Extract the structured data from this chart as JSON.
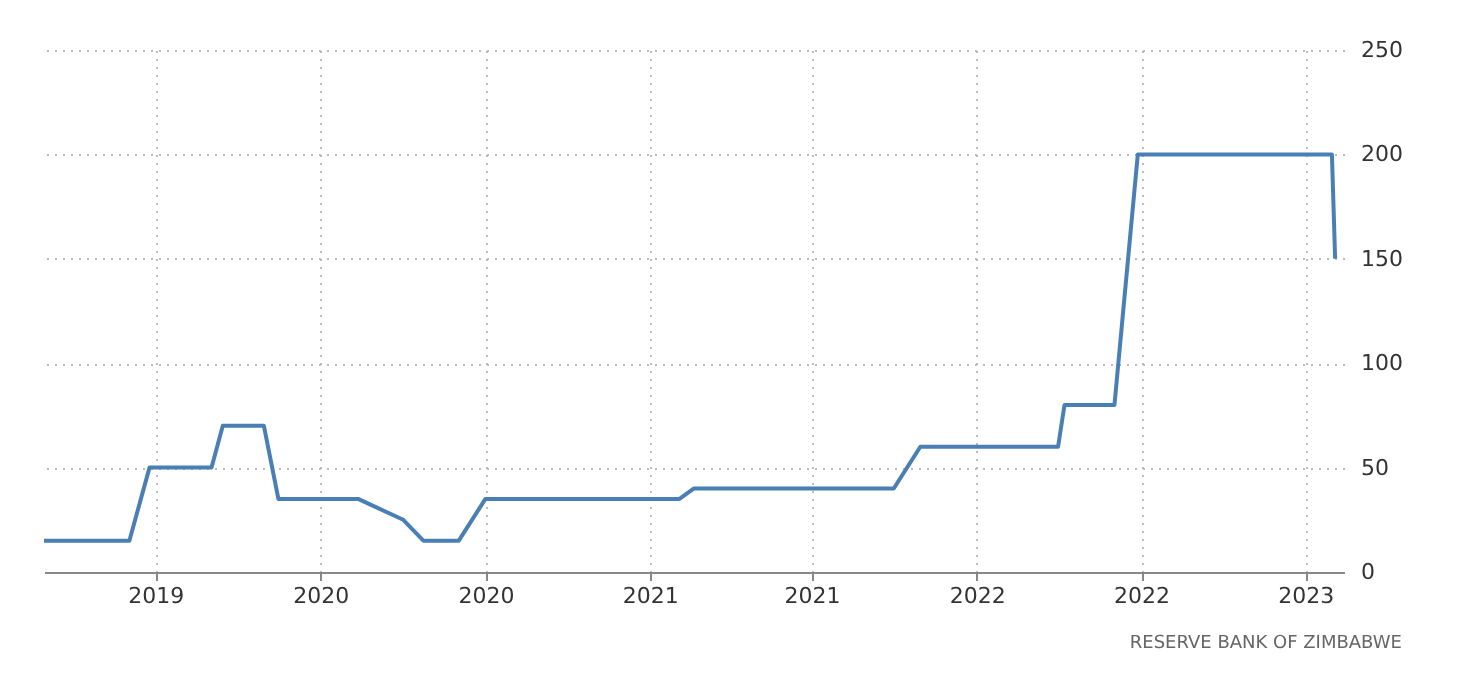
{
  "chart_data": {
    "type": "line",
    "xlim": [
      "2019-01-23",
      "2023-06-25"
    ],
    "ylim": [
      0,
      250
    ],
    "xticks": [
      {
        "value": "2019-06-10",
        "label": "2019"
      },
      {
        "value": "2020-01-01",
        "label": "2020"
      },
      {
        "value": "2020-07-24",
        "label": "2020"
      },
      {
        "value": "2021-02-13",
        "label": "2021"
      },
      {
        "value": "2021-09-02",
        "label": "2021"
      },
      {
        "value": "2022-03-26",
        "label": "2022"
      },
      {
        "value": "2022-10-16",
        "label": "2022"
      },
      {
        "value": "2023-05-08",
        "label": "2023"
      }
    ],
    "yticks": [
      0,
      50,
      100,
      150,
      200,
      250
    ],
    "grid": true,
    "line_style": "solid",
    "marker": "none",
    "x": [
      "2019-01-23",
      "2019-05-09",
      "2019-06-03",
      "2019-08-19",
      "2019-09-02",
      "2019-10-23",
      "2019-11-10",
      "2020-02-17",
      "2020-04-13",
      "2020-05-08",
      "2020-06-21",
      "2020-07-24",
      "2021-03-22",
      "2021-04-09",
      "2021-12-13",
      "2022-01-15",
      "2022-07-05",
      "2022-07-13",
      "2022-09-13",
      "2022-10-12",
      "2023-06-10",
      "2023-06-14"
    ],
    "series": [
      {
        "color": "#4a7fb5",
        "values": [
          15,
          15,
          50,
          50,
          70,
          70,
          35,
          35,
          25,
          15,
          15,
          35,
          35,
          40,
          40,
          60,
          60,
          80,
          80,
          200,
          200,
          150
        ]
      }
    ],
    "annotations": [
      "RESERVE BANK OF ZIMBABWE"
    ]
  }
}
